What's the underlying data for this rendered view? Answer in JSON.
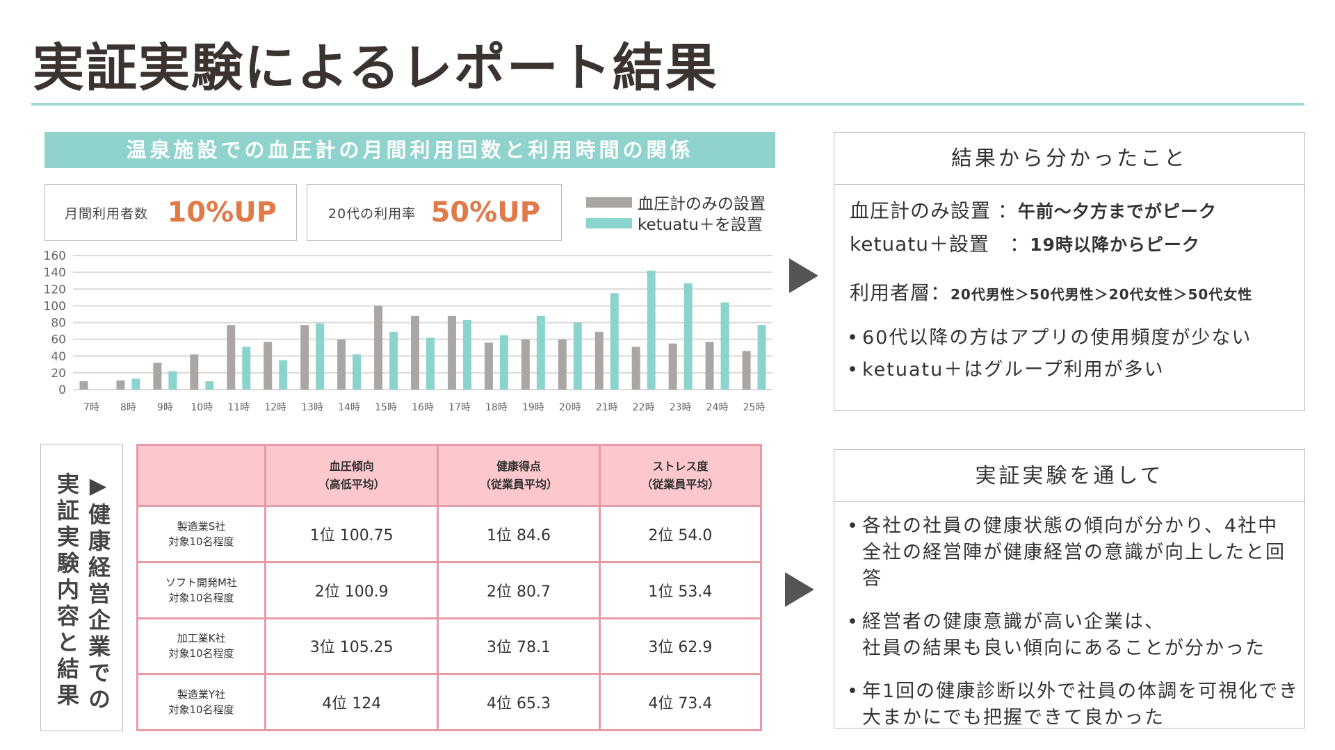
{
  "title": "実証実験によるレポート結果",
  "chart_header": "温泉施設での血圧計の月間利用回数と利用時間の関係",
  "stats": [
    {
      "label": "月間利用者数",
      "value": "10%UP"
    },
    {
      "label": "20代の利用率",
      "value": "50%UP"
    }
  ],
  "colors": {
    "gray": "#aaa6a4",
    "teal": "#8ad4cd",
    "accent": "#e07a48",
    "table_border": "#e69aa5",
    "table_header": "#fcc8cd"
  },
  "chart_data": {
    "type": "bar",
    "categories": [
      "7時",
      "8時",
      "9時",
      "10時",
      "11時",
      "12時",
      "13時",
      "14時",
      "15時",
      "16時",
      "17時",
      "18時",
      "19時",
      "20時",
      "21時",
      "22時",
      "23時",
      "24時",
      "25時"
    ],
    "series": [
      {
        "name": "血圧計のみの設置",
        "color": "#aaa6a4",
        "values": [
          10,
          11,
          32,
          42,
          77,
          57,
          77,
          60,
          100,
          88,
          88,
          56,
          60,
          60,
          69,
          51,
          55,
          57,
          46
        ]
      },
      {
        "name": "ketuatu＋を設置",
        "color": "#8ad4cd",
        "values": [
          0,
          13,
          22,
          10,
          51,
          35,
          79,
          42,
          69,
          62,
          83,
          65,
          88,
          80,
          115,
          142,
          127,
          104,
          77
        ]
      }
    ],
    "ylim": [
      0,
      160
    ],
    "yticks": [
      0,
      20,
      40,
      60,
      80,
      100,
      120,
      140,
      160
    ],
    "grid": true,
    "legend": "top-right"
  },
  "panel1": {
    "header": "結果から分かったこと",
    "row1_label": "血圧計のみ設置 ：",
    "row1_value": "午前〜夕方までがピーク",
    "row2_label": "ketuatu＋設置　：",
    "row2_value": "19時以降からピーク",
    "row3_label": "利用者層：",
    "row3_value": "20代男性＞50代男性＞20代女性＞50代女性",
    "bullets": [
      "60代以降の方はアプリの使用頻度が少ない",
      "ketuatu＋はグループ利用が多い"
    ]
  },
  "vertical_label": {
    "col1": "▶健康経営企業での",
    "col2": "実証実験内容と結果"
  },
  "table": {
    "headers": [
      [
        "",
        ""
      ],
      [
        "血圧傾向",
        "（高低平均）"
      ],
      [
        "健康得点",
        "（従業員平均）"
      ],
      [
        "ストレス度",
        "（従業員平均）"
      ]
    ],
    "rows": [
      {
        "name": "製造業S社",
        "sub": "対象10名程度",
        "cells": [
          "1位 100.75",
          "1位 84.6",
          "2位 54.0"
        ]
      },
      {
        "name": "ソフト開発M社",
        "sub": "対象10名程度",
        "cells": [
          "2位 100.9",
          "2位 80.7",
          "1位 53.4"
        ]
      },
      {
        "name": "加工業K社",
        "sub": "対象10名程度",
        "cells": [
          "3位 105.25",
          "3位 78.1",
          "3位 62.9"
        ]
      },
      {
        "name": "製造業Y社",
        "sub": "対象10名程度",
        "cells": [
          "4位 124",
          "4位 65.3",
          "4位 73.4"
        ]
      }
    ]
  },
  "panel2": {
    "header": "実証実験を通して",
    "bullets": [
      [
        "各社の社員の健康状態の傾向が分かり、4社中",
        "全社の経営陣が健康経営の意識が向上したと回答"
      ],
      [
        "経営者の健康意識が高い企業は、",
        "社員の結果も良い傾向にあることが分かった"
      ],
      [
        "年1回の健康診断以外で社員の体調を可視化でき",
        "大まかにでも把握できて良かった"
      ]
    ]
  }
}
